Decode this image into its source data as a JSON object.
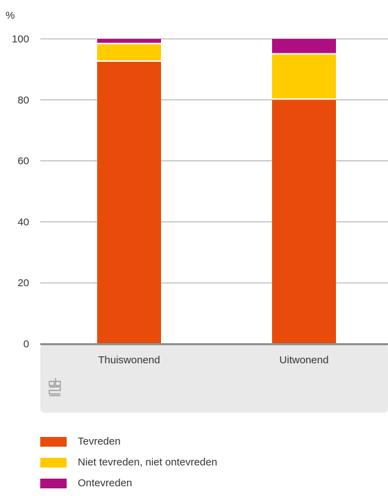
{
  "chart_data": {
    "type": "bar",
    "stacked": true,
    "unit_label": "%",
    "categories": [
      "Thuiswonend",
      "Uitwonend"
    ],
    "series": [
      {
        "name": "Tevreden",
        "color": "#e94c0a",
        "values": [
          92.7,
          80.3
        ]
      },
      {
        "name": "Niet tevreden, niet ontevreden",
        "color": "#ffcc00",
        "values": [
          5.8,
          14.8
        ]
      },
      {
        "name": "Ontevreden",
        "color": "#af0e80",
        "values": [
          1.5,
          4.9
        ]
      }
    ],
    "ylim": [
      0,
      100
    ],
    "yticks": [
      0,
      20,
      40,
      60,
      80,
      100
    ],
    "grid": true,
    "legend_position": "bottom-left",
    "logo": "cbs"
  }
}
